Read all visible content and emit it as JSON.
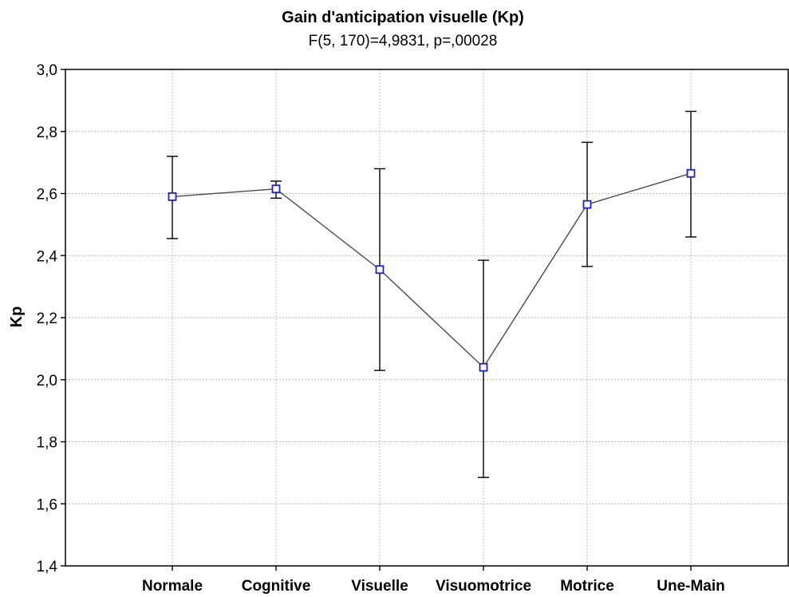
{
  "chart_data": {
    "type": "line",
    "title": "Gain d'anticipation visuelle (Kp)",
    "subtitle": "F(5, 170)=4,9831, p=,00028",
    "xlabel": "",
    "ylabel": "Kp",
    "categories": [
      "Normale",
      "Cognitive",
      "Visuelle",
      "Visuomotrice",
      "Motrice",
      "Une-Main"
    ],
    "series": [
      {
        "values": [
          2.59,
          2.615,
          2.355,
          2.04,
          2.565,
          2.665
        ],
        "error_low": [
          2.455,
          2.585,
          2.03,
          1.685,
          2.365,
          2.46
        ],
        "error_high": [
          2.72,
          2.64,
          2.68,
          2.385,
          2.765,
          2.865
        ]
      }
    ],
    "ylim": [
      1.4,
      3.0
    ],
    "yticks": [
      1.4,
      1.6,
      1.8,
      2.0,
      2.2,
      2.4,
      2.6,
      2.8,
      3.0
    ],
    "ytick_labels": [
      "1,4",
      "1,6",
      "1,8",
      "2,0",
      "2,2",
      "2,4",
      "2,6",
      "2,8",
      "3,0"
    ],
    "grid": true,
    "legend": "none",
    "colors": {
      "marker_stroke": "#2020d0",
      "line": "#4a4a4a",
      "error_bar": "#000000",
      "grid": "#b8b8b8"
    }
  }
}
